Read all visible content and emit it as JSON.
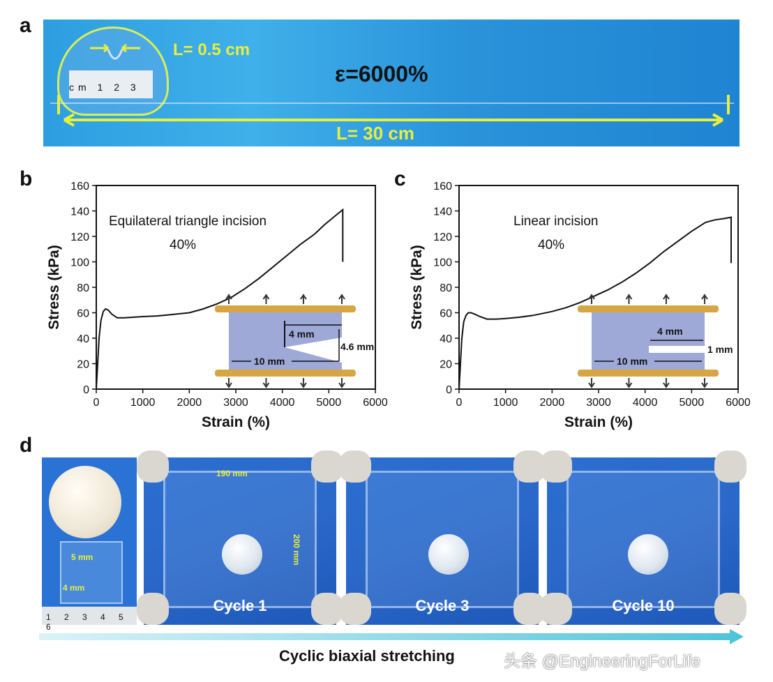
{
  "panels": {
    "a": {
      "letter": "a",
      "initial_length": "L= 0.5 cm",
      "strain": "ε=6000%",
      "final_length": "L= 30 cm",
      "ruler_text": "cm 1 2 3"
    },
    "b": {
      "letter": "b"
    },
    "c": {
      "letter": "c"
    },
    "d": {
      "letter": "d",
      "dim_190": "190 mm",
      "dim_200": "200 mm",
      "dim_5": "5 mm",
      "dim_4": "4 mm",
      "ruler_text": "1 2 3 4 5 6",
      "photos": [
        {
          "cycle": "Cycle 1"
        },
        {
          "cycle": "Cycle 3"
        },
        {
          "cycle": "Cycle 10"
        }
      ],
      "caption": "Cyclic biaxial stretching"
    }
  },
  "watermark": "头条 @EngineeringForLife",
  "chart_data": [
    {
      "type": "line",
      "panel": "b",
      "annotation": "Equilateral triangle incision",
      "annotation2": "40%",
      "xlabel": "Strain (%)",
      "ylabel": "Stress (kPa)",
      "xlim": [
        0,
        6000
      ],
      "ylim": [
        0,
        160
      ],
      "xticks": [
        0,
        1000,
        2000,
        3000,
        4000,
        5000,
        6000
      ],
      "yticks": [
        0,
        20,
        40,
        60,
        80,
        100,
        120,
        140,
        160
      ],
      "inset_labels": [
        "4 mm",
        "4.6 mm",
        "10 mm"
      ],
      "x": [
        0,
        30,
        60,
        100,
        150,
        200,
        260,
        330,
        450,
        600,
        800,
        1000,
        1300,
        1600,
        2000,
        2300,
        2600,
        2900,
        3200,
        3500,
        3800,
        4100,
        4400,
        4700,
        4900,
        5100,
        5200,
        5300,
        5300
      ],
      "y": [
        0,
        20,
        40,
        54,
        61,
        63,
        62,
        59,
        56,
        56,
        56.5,
        57,
        57.5,
        58.5,
        60,
        63,
        67,
        72,
        79,
        87,
        96,
        105,
        114,
        122,
        129,
        135,
        138,
        141,
        100
      ]
    },
    {
      "type": "line",
      "panel": "c",
      "annotation": "Linear incision",
      "annotation2": "40%",
      "xlabel": "Strain (%)",
      "ylabel": "Stress (kPa)",
      "xlim": [
        0,
        6000
      ],
      "ylim": [
        0,
        160
      ],
      "xticks": [
        0,
        1000,
        2000,
        3000,
        4000,
        5000,
        6000
      ],
      "yticks": [
        0,
        20,
        40,
        60,
        80,
        100,
        120,
        140,
        160
      ],
      "inset_labels": [
        "4 mm",
        "1 mm",
        "10 mm"
      ],
      "x": [
        0,
        30,
        60,
        100,
        150,
        200,
        260,
        330,
        450,
        600,
        800,
        1000,
        1300,
        1600,
        2000,
        2300,
        2600,
        2900,
        3200,
        3500,
        3800,
        4100,
        4400,
        4700,
        5000,
        5300,
        5500,
        5700,
        5850,
        5850
      ],
      "y": [
        0,
        20,
        40,
        53,
        58,
        60,
        60,
        59,
        57,
        55,
        55,
        55.5,
        56.5,
        58,
        61,
        64,
        68,
        73,
        78,
        84,
        91,
        99,
        108,
        116,
        124,
        131,
        133,
        134,
        135,
        99
      ]
    }
  ]
}
